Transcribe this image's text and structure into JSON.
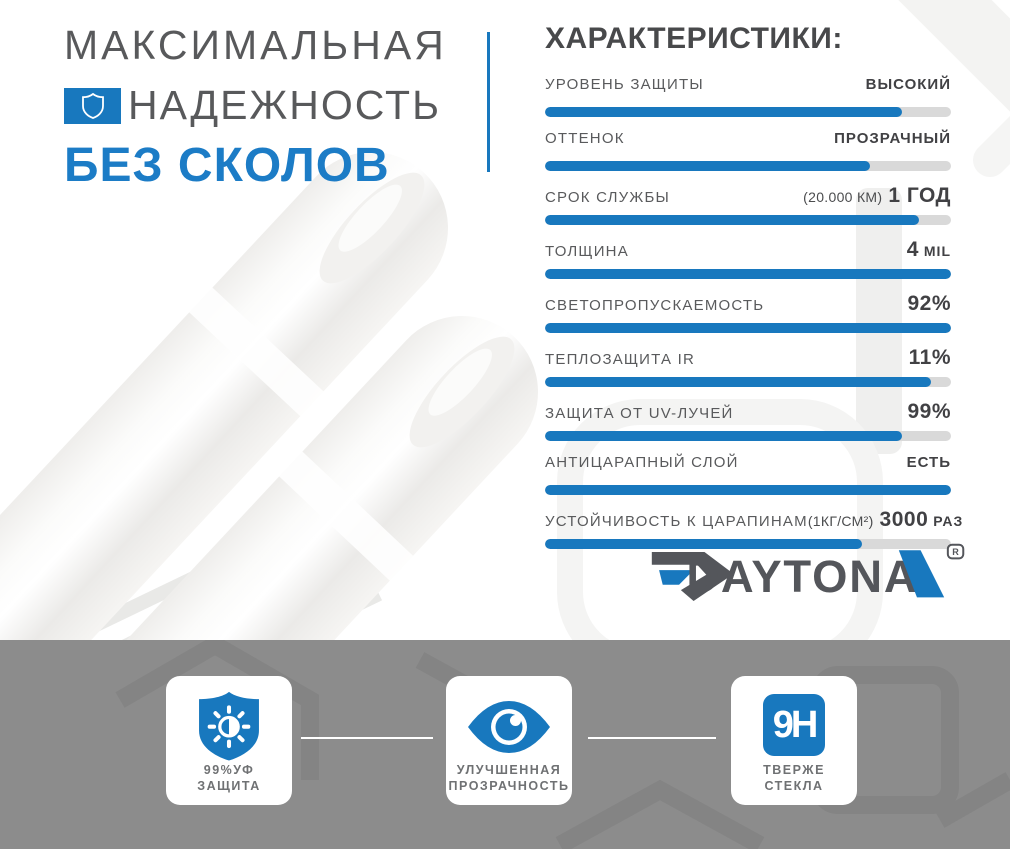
{
  "colors": {
    "accent_blue": "#1878be",
    "headline_blue": "#1c7cc6",
    "headline_gray": "#58595b",
    "value_dark": "#414144",
    "bar_track_gray": "#d9d9d9",
    "band_gray": "#8c8c8c",
    "card_label_gray": "#6f7173",
    "logo_gray": "#54565b"
  },
  "headline": {
    "line1": "МАКСИМАЛЬНАЯ",
    "line2": "НАДЕЖНОСТЬ",
    "line3": "БЕЗ СКОЛОВ",
    "shield_icon": "shield-outline-icon"
  },
  "specs": {
    "title": "ХАРАКТЕРИСТИКИ:",
    "rows": [
      {
        "label": "УРОВЕНЬ ЗАЩИТЫ",
        "note": "",
        "value": "ВЫСОКИЙ",
        "unit": "",
        "size": "sm",
        "fill": 88
      },
      {
        "label": "ОТТЕНОК",
        "note": "",
        "value": "ПРОЗРАЧНЫЙ",
        "unit": "",
        "size": "sm",
        "fill": 80
      },
      {
        "label": "СРОК СЛУЖБЫ",
        "note": "(20.000 КМ)",
        "value": "1 ГОД",
        "unit": "",
        "size": "lg",
        "fill": 92
      },
      {
        "label": "ТОЛЩИНА",
        "note": "",
        "value": "4",
        "unit": "MIL",
        "size": "lg",
        "fill": 100
      },
      {
        "label": "СВЕТОПРОПУСКАЕМОСТЬ",
        "note": "",
        "value": "92%",
        "unit": "",
        "size": "lg",
        "fill": 100
      },
      {
        "label": "ТЕПЛОЗАЩИТА IR",
        "note": "",
        "value": "11%",
        "unit": "",
        "size": "lg",
        "fill": 95
      },
      {
        "label": "ЗАЩИТА ОТ UV-ЛУЧЕЙ",
        "note": "",
        "value": "99%",
        "unit": "",
        "size": "lg",
        "fill": 88
      },
      {
        "label": "АНТИЦАРАПНЫЙ СЛОЙ",
        "note": "",
        "value": "ЕСТЬ",
        "unit": "",
        "size": "sm",
        "fill": 100
      },
      {
        "label": "УСТОЙЧИВОСТЬ К ЦАРАПИНАМ",
        "note": "(1КГ/СМ²)",
        "value": "3000",
        "unit": "РАЗ",
        "size": "lg",
        "fill": 78
      }
    ]
  },
  "chart_data": {
    "type": "bar",
    "orientation": "horizontal",
    "title": "ХАРАКТЕРИСТИКИ:",
    "categories": [
      "УРОВЕНЬ ЗАЩИТЫ",
      "ОТТЕНОК",
      "СРОК СЛУЖБЫ",
      "ТОЛЩИНА",
      "СВЕТОПРОПУСКАЕМОСТЬ",
      "ТЕПЛОЗАЩИТА IR",
      "ЗАЩИТА ОТ UV-ЛУЧЕЙ",
      "АНТИЦАРАПНЫЙ СЛОЙ",
      "УСТОЙЧИВОСТЬ К ЦАРАПИНАМ"
    ],
    "value_labels": [
      "ВЫСОКИЙ",
      "ПРОЗРАЧНЫЙ",
      "(20.000 КМ) 1 ГОД",
      "4 MIL",
      "92%",
      "11%",
      "99%",
      "ЕСТЬ",
      "(1КГ/СМ²) 3000 РАЗ"
    ],
    "bar_fill_percent": [
      88,
      80,
      92,
      100,
      100,
      95,
      88,
      100,
      78
    ],
    "xlim": [
      0,
      100
    ],
    "grid": false,
    "legend": false,
    "bar_color": "#1878be",
    "track_color": "#d9d9d9"
  },
  "logo": {
    "brand": "DAYTONA",
    "reg": "R"
  },
  "badges": [
    {
      "icon": "uv-shield-sun-icon",
      "line1": "99%УФ",
      "line2": "ЗАЩИТА"
    },
    {
      "icon": "eye-icon",
      "line1": "УЛУЧШЕННАЯ",
      "line2": "ПРОЗРАЧНОСТЬ"
    },
    {
      "icon": "hardness-9h-icon",
      "line1": "ТВЕРЖЕ",
      "line2": "СТЕКЛА",
      "icon_text": "9H"
    }
  ]
}
